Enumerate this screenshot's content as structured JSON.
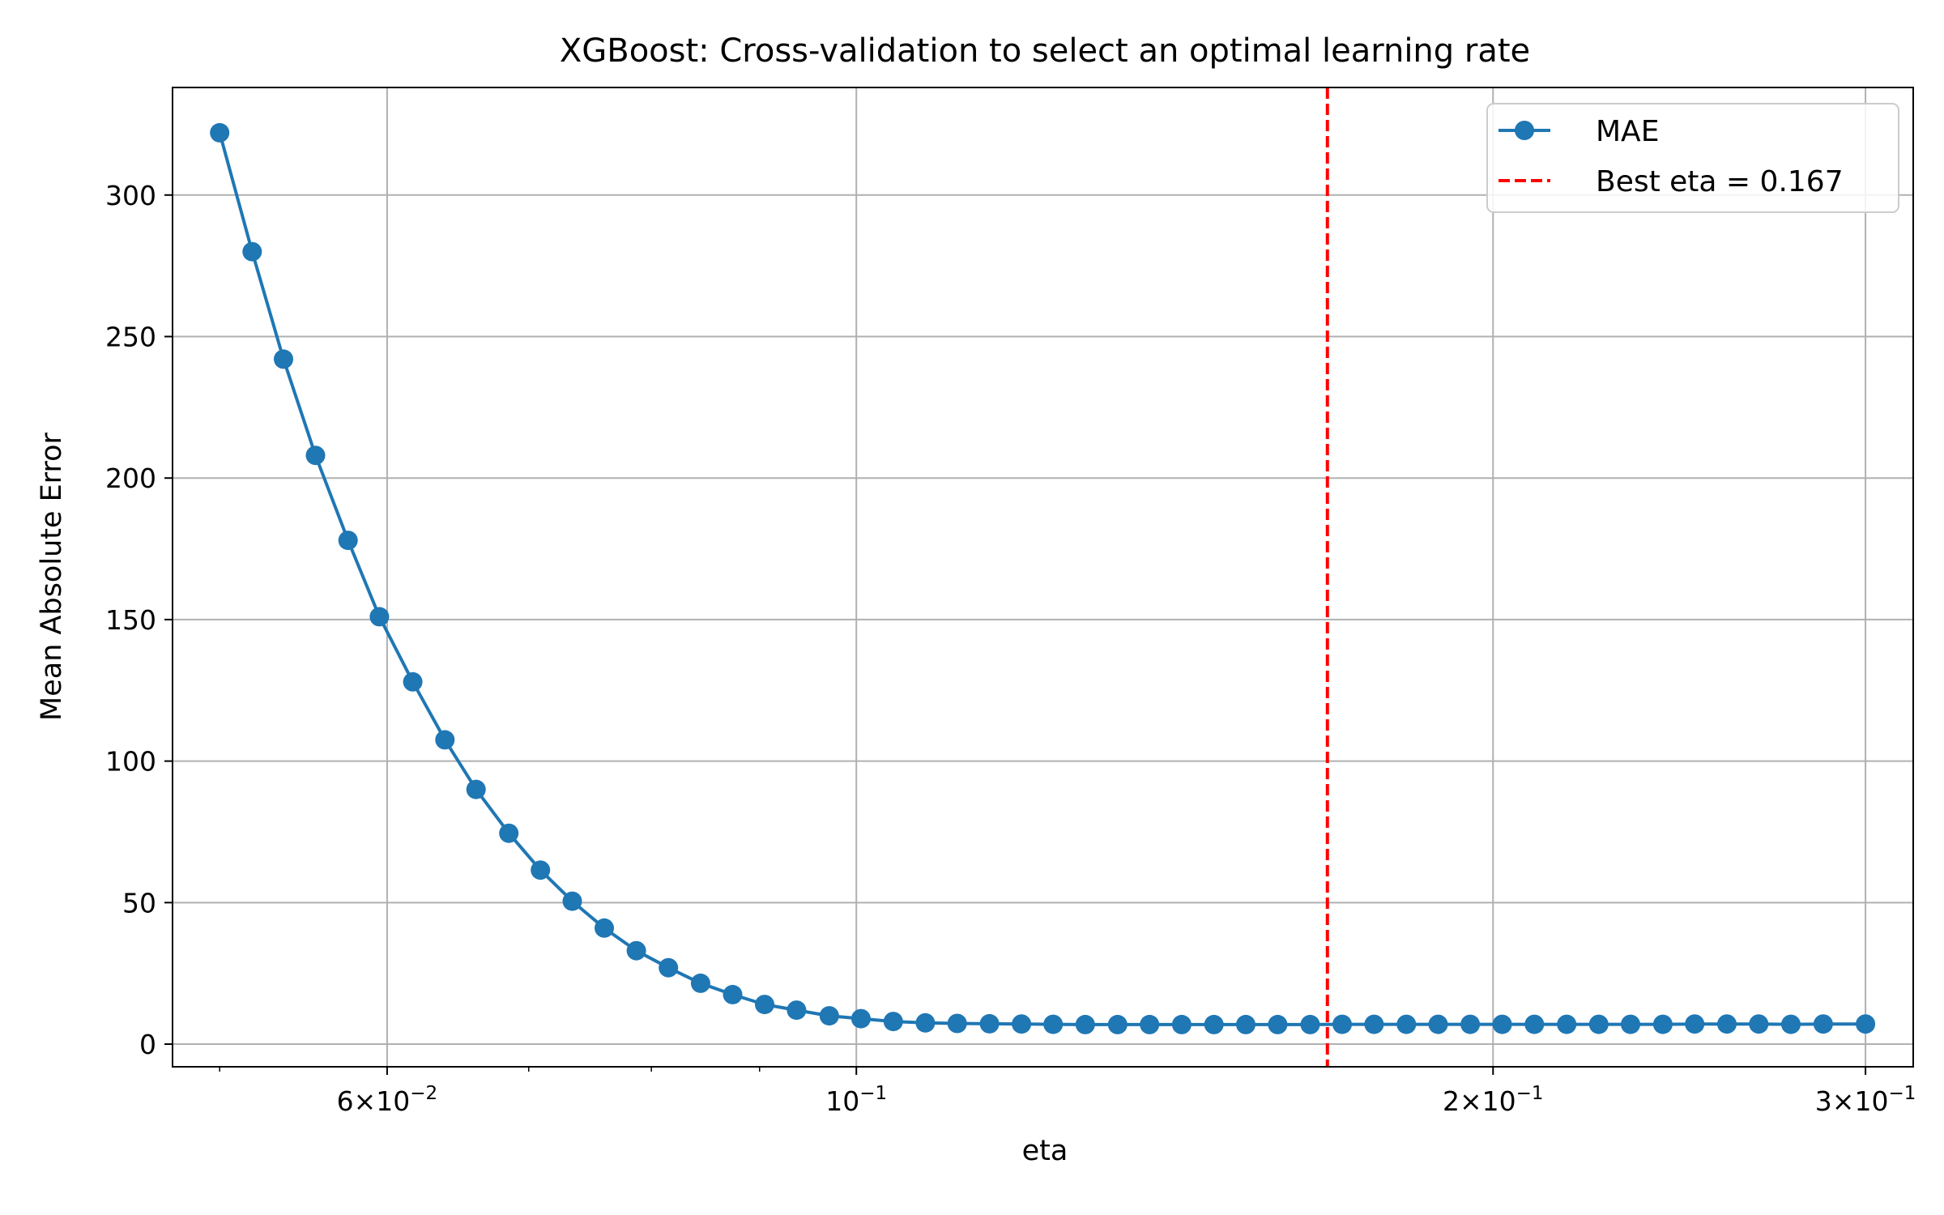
{
  "chart_data": {
    "type": "line",
    "title": "XGBoost: Cross-validation to select an optimal learning rate",
    "xlabel": "eta",
    "ylabel": "Mean Absolute Error",
    "xscale": "log",
    "xlim": [
      0.0475,
      0.316
    ],
    "ylim": [
      -8,
      338
    ],
    "grid": true,
    "legend": {
      "placement": "top-right",
      "entries": [
        "MAE",
        "Best eta = 0.167"
      ]
    },
    "x_ticks": [
      {
        "value": 0.06,
        "mantissa": "6",
        "exponent": "−2"
      },
      {
        "value": 0.1,
        "mantissa": "",
        "exponent": "−1"
      },
      {
        "value": 0.2,
        "mantissa": "2",
        "exponent": "−1"
      },
      {
        "value": 0.3,
        "mantissa": "3",
        "exponent": "−1"
      }
    ],
    "x_minor_ticks": [
      0.05,
      0.07,
      0.08,
      0.09
    ],
    "y_ticks": [
      0,
      50,
      100,
      150,
      200,
      250,
      300
    ],
    "series": [
      {
        "name": "MAE",
        "color": "#1f77b4",
        "marker": "circle",
        "x": [
          0.05,
          0.0518,
          0.0536,
          0.0555,
          0.0575,
          0.0595,
          0.0617,
          0.0639,
          0.0661,
          0.0685,
          0.0709,
          0.0734,
          0.076,
          0.0787,
          0.0815,
          0.0844,
          0.0874,
          0.0905,
          0.0937,
          0.0971,
          0.1005,
          0.1041,
          0.1078,
          0.1116,
          0.1156,
          0.1197,
          0.1239,
          0.1283,
          0.1329,
          0.1376,
          0.1425,
          0.1476,
          0.1528,
          0.1582,
          0.1639,
          0.1697,
          0.1757,
          0.182,
          0.1884,
          0.1951,
          0.202,
          0.2092,
          0.2167,
          0.2244,
          0.2323,
          0.2406,
          0.2491,
          0.258,
          0.2671,
          0.2766,
          0.2865,
          0.3
        ],
        "values": [
          322,
          280,
          242,
          208,
          178,
          151,
          128,
          107.5,
          90,
          74.5,
          61.5,
          50.5,
          41,
          33,
          27,
          21.5,
          17.5,
          14,
          12,
          10,
          9,
          8,
          7.5,
          7.3,
          7.2,
          7.1,
          7.0,
          6.9,
          6.9,
          6.9,
          6.9,
          6.9,
          6.9,
          6.9,
          6.9,
          7.0,
          7.0,
          7.0,
          7.0,
          7.0,
          7.0,
          7.0,
          7.0,
          7.0,
          7.0,
          7.0,
          7.1,
          7.1,
          7.1,
          7.0,
          7.1,
          7.1
        ]
      }
    ],
    "reference_line": {
      "name": "Best eta = 0.167",
      "x": 0.167,
      "color": "#ff0000",
      "style": "dashed"
    }
  }
}
